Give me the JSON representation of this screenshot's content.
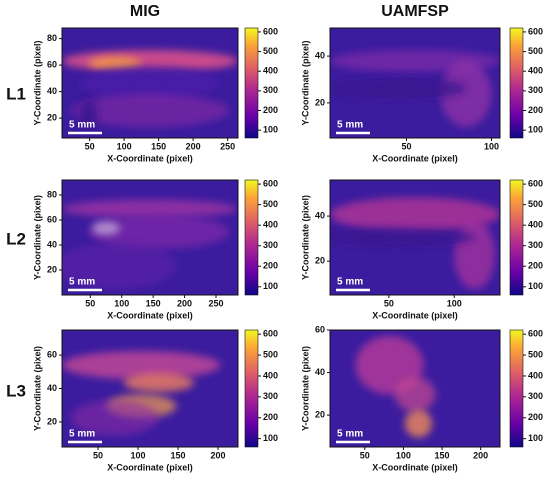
{
  "column_titles": [
    "MIG",
    "UAMFSP"
  ],
  "row_labels": [
    "L1",
    "L2",
    "L3"
  ],
  "chart_data": [
    {
      "type": "heatmap",
      "xlabel": "X-Coordinate (pixel)",
      "ylabel": "Y-Coordinate (pixel)",
      "xlim": [
        10,
        265
      ],
      "xticks": [
        50,
        100,
        150,
        200,
        250
      ],
      "ylim": [
        5,
        88
      ],
      "yticks": [
        20,
        40,
        60,
        80
      ],
      "clim": [
        60,
        620
      ],
      "colorbar_ticks": [
        100,
        200,
        300,
        400,
        500,
        600
      ],
      "scale_bar": "5 mm"
    },
    {
      "type": "heatmap",
      "xlabel": "X-Coordinate (pixel)",
      "ylabel": "Y-Coordinate (pixel)",
      "xlim": [
        5,
        105
      ],
      "xticks": [
        50,
        100
      ],
      "ylim": [
        5,
        52
      ],
      "yticks": [
        20,
        40
      ],
      "clim": [
        60,
        620
      ],
      "colorbar_ticks": [
        100,
        200,
        300,
        400,
        500,
        600
      ],
      "scale_bar": "5 mm"
    },
    {
      "type": "heatmap",
      "xlabel": "X-Coordinate (pixel)",
      "ylabel": "Y-Coordinate (pixel)",
      "xlim": [
        5,
        285
      ],
      "xticks": [
        50,
        100,
        150,
        200,
        250
      ],
      "ylim": [
        0,
        92
      ],
      "yticks": [
        20,
        40,
        60,
        80
      ],
      "clim": [
        60,
        620
      ],
      "colorbar_ticks": [
        100,
        200,
        300,
        400,
        500,
        600
      ],
      "scale_bar": "5 mm"
    },
    {
      "type": "heatmap",
      "xlabel": "X-Coordinate (pixel)",
      "ylabel": "Y-Coordinate (pixel)",
      "xlim": [
        5,
        135
      ],
      "xticks": [
        50,
        100
      ],
      "ylim": [
        5,
        56
      ],
      "yticks": [
        20,
        40
      ],
      "clim": [
        60,
        620
      ],
      "colorbar_ticks": [
        100,
        200,
        300,
        400,
        500,
        600
      ],
      "scale_bar": "5 mm"
    },
    {
      "type": "heatmap",
      "xlabel": "X-Coordinate (pixel)",
      "ylabel": "Y-Coordinate (pixel)",
      "xlim": [
        5,
        225
      ],
      "xticks": [
        50,
        100,
        150,
        200
      ],
      "ylim": [
        5,
        75
      ],
      "yticks": [
        20,
        40,
        60
      ],
      "clim": [
        60,
        620
      ],
      "colorbar_ticks": [
        100,
        200,
        300,
        400,
        500,
        600
      ],
      "scale_bar": "5 mm"
    },
    {
      "type": "heatmap",
      "xlabel": "X-Coordinate (pixel)",
      "ylabel": "Y-Coordinate (pixel)",
      "xlim": [
        5,
        225
      ],
      "xticks": [
        50,
        100,
        150,
        200
      ],
      "ylim": [
        5,
        60
      ],
      "yticks": [
        20,
        40,
        60
      ],
      "clim": [
        60,
        620
      ],
      "colorbar_ticks": [
        100,
        200,
        300,
        400,
        500,
        600
      ],
      "scale_bar": "5 mm"
    }
  ]
}
